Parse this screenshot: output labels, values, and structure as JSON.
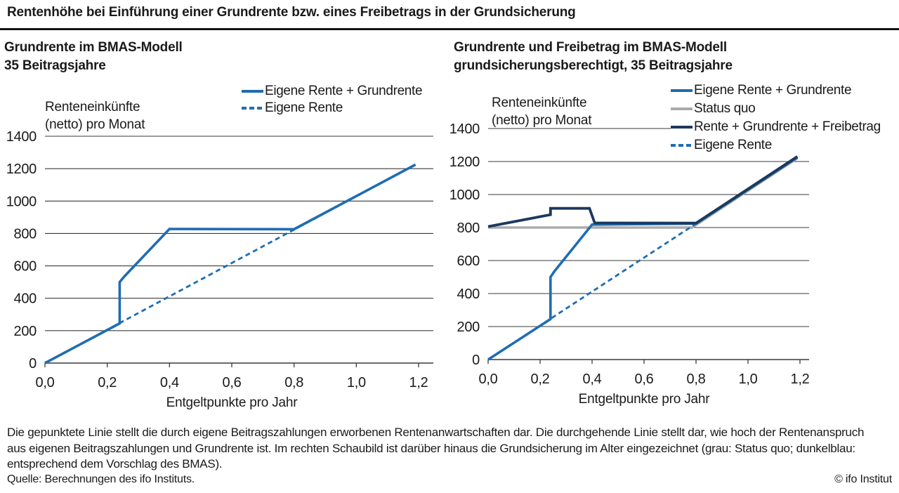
{
  "header": {
    "title": "Rentenhöhe bei Einführung einer Grundrente bzw. eines Freibetrags in der Grundsicherung"
  },
  "colors": {
    "blue": "#1F6DB3",
    "navy": "#1A3A5C",
    "gray": "#ABABAB",
    "text": "#1A1A1A",
    "grid": "#3A3A3A"
  },
  "chart_data": [
    {
      "id": "left",
      "type": "line",
      "title_line1": "Grundrente im BMAS-Modell",
      "title_line2": "35 Beitragsjahre",
      "ylabel_line1": "Renteneinkünfte",
      "ylabel_line2": "(netto) pro Monat",
      "xlabel": "Entgeltpunkte pro Jahr",
      "xlim": [
        0,
        1.25
      ],
      "ylim": [
        0,
        1400
      ],
      "grid": "horizontal",
      "xticks": [
        0,
        0.2,
        0.4,
        0.6,
        0.8,
        1.0,
        1.2
      ],
      "xtick_labels": [
        "0,0",
        "0,2",
        "0,4",
        "0,6",
        "0,8",
        "1,0",
        "1,2"
      ],
      "yticks": [
        0,
        200,
        400,
        600,
        800,
        1000,
        1200,
        1400
      ],
      "ytick_labels": [
        "0",
        "200",
        "400",
        "600",
        "800",
        "1000",
        "1200",
        "1400"
      ],
      "series": [
        {
          "name": "Eigene Rente",
          "color": "blue",
          "style": "dashed",
          "width": 2.8,
          "points": [
            [
              0,
              0
            ],
            [
              1.19,
              1225
            ]
          ]
        },
        {
          "name": "Eigene Rente + Grundrente",
          "color": "blue",
          "style": "solid",
          "width": 3.6,
          "points": [
            [
              0,
              0
            ],
            [
              0.24,
              245
            ],
            [
              0.24,
              500
            ],
            [
              0.255,
              535
            ],
            [
              0.4,
              828
            ],
            [
              0.8,
              826
            ],
            [
              1.19,
              1225
            ]
          ]
        }
      ],
      "legend": [
        {
          "label": "Eigene Rente + Grundrente",
          "color": "blue",
          "style": "solid"
        },
        {
          "label": "Eigene Rente",
          "color": "blue",
          "style": "dashed"
        }
      ]
    },
    {
      "id": "right",
      "type": "line",
      "title_line1": "Grundrente und Freibetrag im BMAS-Modell",
      "title_line2": "grundsicherungsberechtigt, 35 Beitragsjahre",
      "ylabel_line1": "Renteneinkünfte",
      "ylabel_line2": "(netto) pro Monat",
      "xlabel": "Entgeltpunkte pro Jahr",
      "xlim": [
        0,
        1.25
      ],
      "ylim": [
        0,
        1400
      ],
      "grid": "horizontal",
      "xticks": [
        0,
        0.2,
        0.4,
        0.6,
        0.8,
        1.0,
        1.2
      ],
      "xtick_labels": [
        "0,0",
        "0,2",
        "0,4",
        "0,6",
        "0,8",
        "1,0",
        "1,2"
      ],
      "yticks": [
        0,
        200,
        400,
        600,
        800,
        1000,
        1200,
        1400
      ],
      "ytick_labels": [
        "0",
        "200",
        "400",
        "600",
        "800",
        "1000",
        "1200",
        "1400"
      ],
      "series": [
        {
          "name": "Status quo",
          "color": "gray",
          "style": "solid",
          "width": 3.4,
          "points": [
            [
              0,
              800
            ],
            [
              0.785,
              800
            ],
            [
              1.19,
              1220
            ]
          ]
        },
        {
          "name": "Eigene Rente",
          "color": "blue",
          "style": "dashed",
          "width": 2.8,
          "points": [
            [
              0,
              0
            ],
            [
              1.19,
              1225
            ]
          ]
        },
        {
          "name": "Eigene Rente + Grundrente",
          "color": "blue",
          "style": "solid",
          "width": 3.6,
          "points": [
            [
              0,
              0
            ],
            [
              0.24,
              245
            ],
            [
              0.24,
              500
            ],
            [
              0.255,
              535
            ],
            [
              0.4,
              818
            ],
            [
              0.8,
              824
            ],
            [
              1.19,
              1225
            ]
          ]
        },
        {
          "name": "Rente + Grundrente + Freibetrag",
          "color": "navy",
          "style": "solid",
          "width": 3.8,
          "points": [
            [
              0,
              806
            ],
            [
              0.24,
              878
            ],
            [
              0.24,
              916
            ],
            [
              0.39,
              916
            ],
            [
              0.41,
              828
            ],
            [
              0.8,
              827
            ],
            [
              1.19,
              1230
            ]
          ]
        }
      ],
      "legend": [
        {
          "label": "Eigene Rente + Grundrente",
          "color": "blue",
          "style": "solid"
        },
        {
          "label": "Status quo",
          "color": "gray",
          "style": "solid"
        },
        {
          "label": "Rente + Grundrente + Freibetrag",
          "color": "navy",
          "style": "solid"
        },
        {
          "label": "Eigene Rente",
          "color": "blue",
          "style": "dashed"
        }
      ]
    }
  ],
  "footer": {
    "note": "Die gepunktete Linie stellt die durch eigene Beitragszahlungen erworbenen Rentenanwartschaften dar. Die durchgehende Linie stellt dar, wie hoch der Rentenanspruch aus eigenen Beitragszahlungen und Grundrente ist. Im rechten Schaubild ist darüber hinaus die Grundsicherung im Alter eingezeichnet (grau: Status quo; dunkelblau: entsprechend dem Vorschlag des BMAS).",
    "source": "Quelle: Berechnungen des ifo Instituts.",
    "copyright": "© ifo Institut"
  }
}
